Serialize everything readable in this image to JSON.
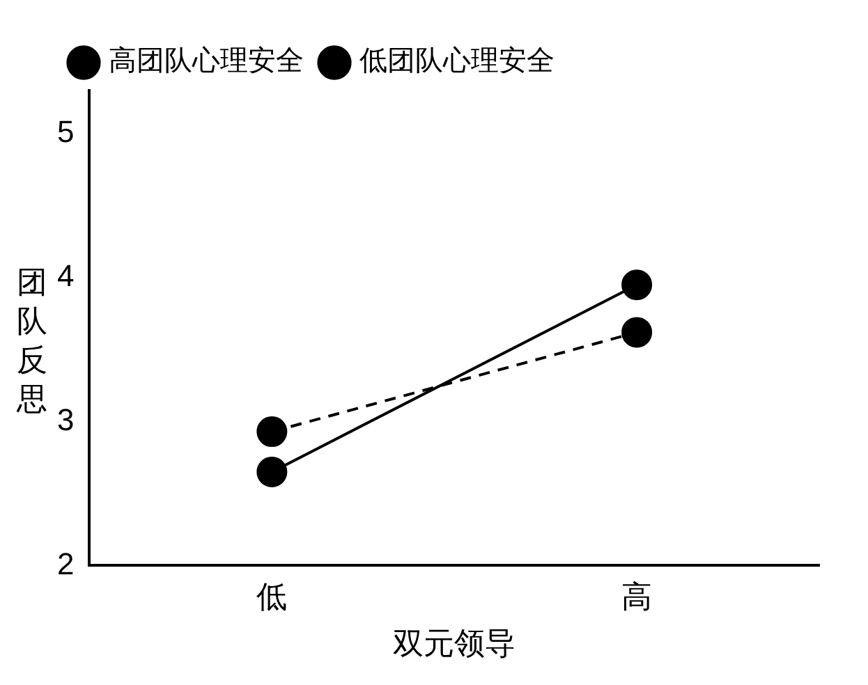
{
  "chart_data": {
    "type": "line",
    "xlabel": "双元领导",
    "ylabel": "团队反思",
    "categories": [
      "低",
      "高"
    ],
    "series": [
      {
        "name": "高团队心理安全",
        "color": "#000000",
        "values": [
          2.65,
          3.95
        ],
        "line_style": "solid"
      },
      {
        "name": "低团队心理安全",
        "color": "#000000",
        "values": [
          2.93,
          3.62
        ],
        "line_style": "dashed"
      }
    ],
    "ylim": [
      2,
      5.3
    ],
    "yticks": [
      2,
      3,
      4,
      5
    ],
    "grid": false,
    "legend": "top left",
    "marker": "circle"
  }
}
